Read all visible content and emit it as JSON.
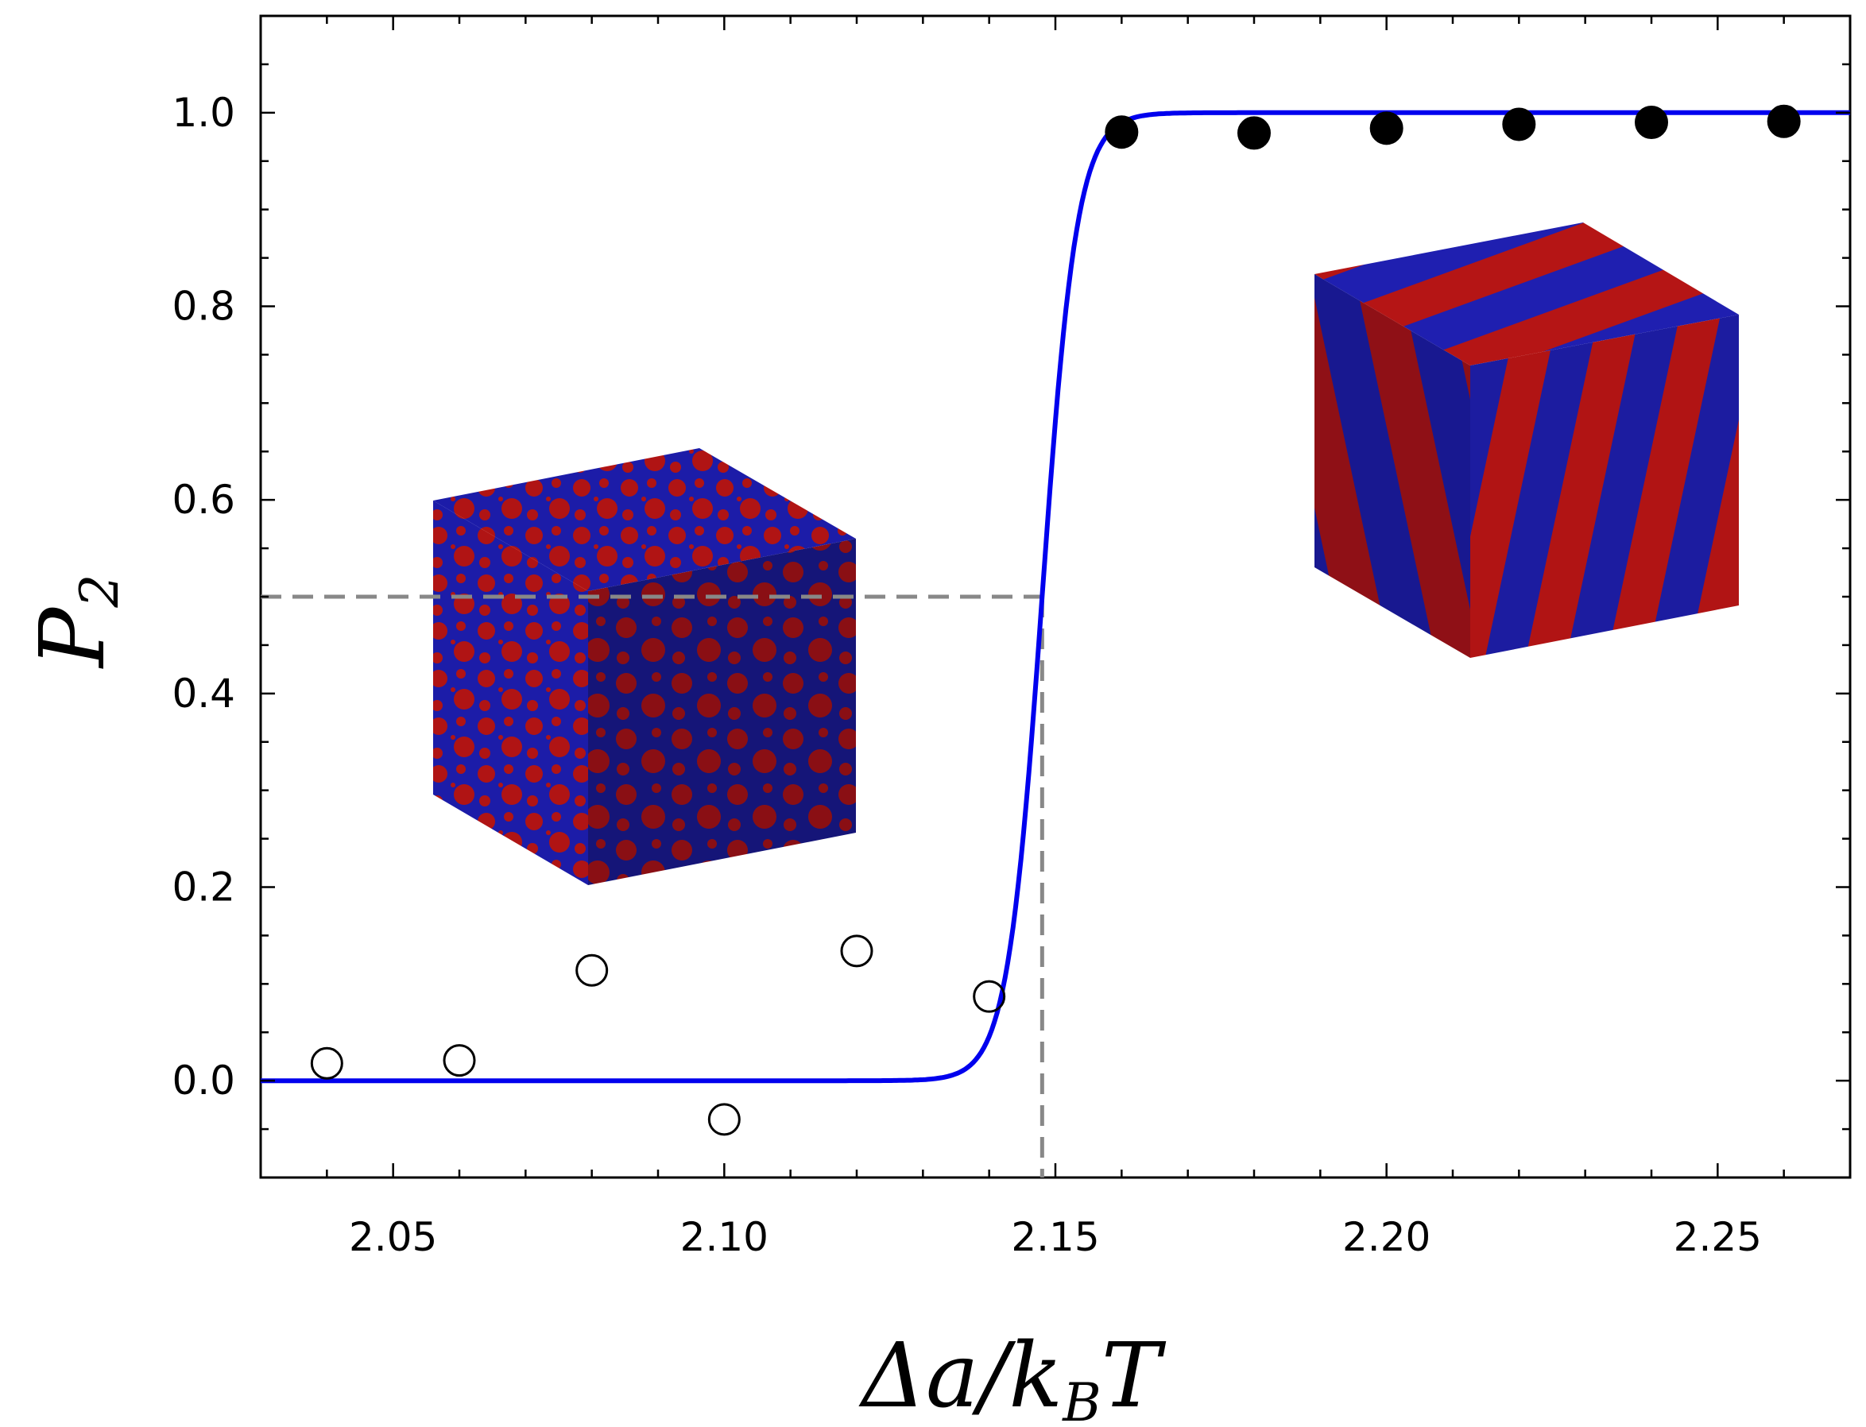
{
  "chart_data": {
    "type": "scatter",
    "xlabel": "Δa/k_BT",
    "xlabel_main": "Δa/k",
    "xlabel_sub": "B",
    "xlabel_tail": "T",
    "ylabel": "P_2",
    "ylabel_main": "P",
    "ylabel_sub": "2",
    "xlim": [
      2.03,
      2.27
    ],
    "ylim": [
      -0.1,
      1.1
    ],
    "x_ticks": [
      2.05,
      2.1,
      2.15,
      2.2,
      2.25
    ],
    "x_tick_labels": [
      "2.05",
      "2.10",
      "2.15",
      "2.20",
      "2.25"
    ],
    "y_ticks": [
      0.0,
      0.2,
      0.4,
      0.6,
      0.8,
      1.0
    ],
    "y_tick_labels": [
      "0.0",
      "0.2",
      "0.4",
      "0.6",
      "0.8",
      "1.0"
    ],
    "grid": false,
    "series": [
      {
        "marker": "open-circle",
        "color": "#000000",
        "x": [
          2.04,
          2.06,
          2.08,
          2.1,
          2.12,
          2.14
        ],
        "y": [
          0.018,
          0.021,
          0.114,
          -0.04,
          0.134,
          0.087
        ]
      },
      {
        "marker": "filled-circle",
        "color": "#000000",
        "x": [
          2.16,
          2.18,
          2.2,
          2.22,
          2.24,
          2.26
        ],
        "y": [
          0.98,
          0.979,
          0.984,
          0.988,
          0.99,
          0.991
        ]
      },
      {
        "kind": "sigmoid-fit-line",
        "color": "#0000ee",
        "midpoint": 2.148,
        "lower": 0.0,
        "upper": 1.0
      }
    ],
    "annotations": [
      {
        "kind": "dashed-guide",
        "color": "#888888",
        "x": 2.148,
        "y": 0.5
      },
      {
        "kind": "inset-image",
        "name": "disordered-cube",
        "colors": [
          "#1a1aa8",
          "#b01010"
        ]
      },
      {
        "kind": "inset-image",
        "name": "lamellar-cube",
        "colors": [
          "#1a1aa8",
          "#b01010"
        ]
      }
    ]
  }
}
